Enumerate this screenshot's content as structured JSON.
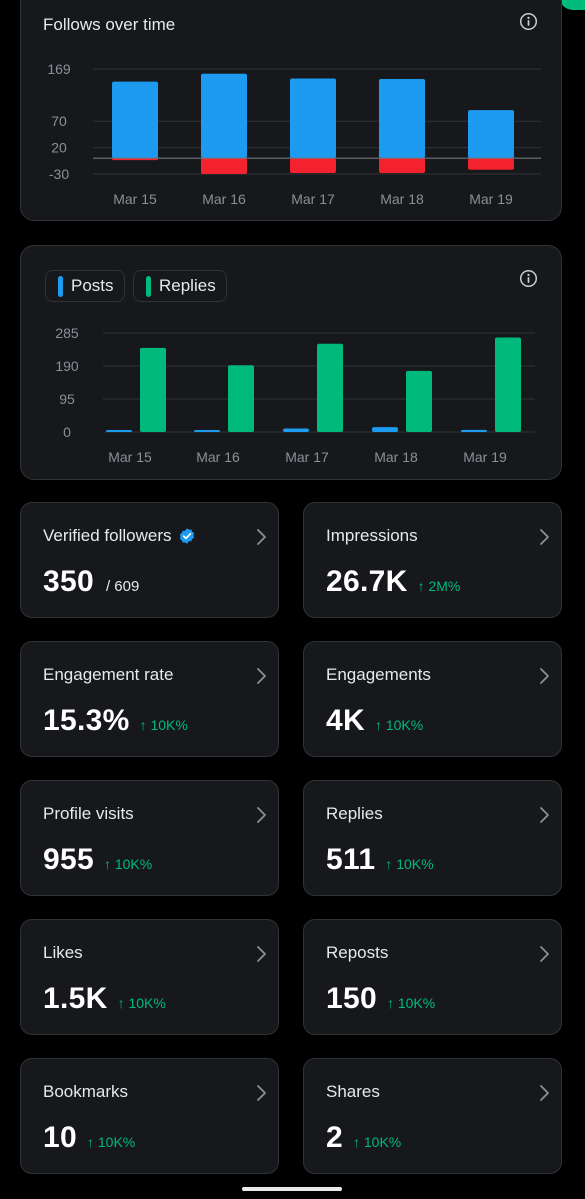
{
  "follows_card": {
    "title": "Follows over time"
  },
  "posts_card": {
    "legend": [
      {
        "label": "Posts",
        "color": "#1d9bf0"
      },
      {
        "label": "Replies",
        "color": "#00ba7c"
      }
    ]
  },
  "chart_data": [
    {
      "type": "bar",
      "title": "Follows over time",
      "categories": [
        "Mar 15",
        "Mar 16",
        "Mar 17",
        "Mar 18",
        "Mar 19"
      ],
      "yticks": [
        169,
        70,
        20,
        -30
      ],
      "ylim": [
        -30,
        169
      ],
      "series": [
        {
          "name": "",
          "color": "#1d9bf0",
          "values": [
            145,
            160,
            151,
            150,
            91
          ]
        },
        {
          "name": "",
          "color": "#f4212e",
          "values": [
            -3,
            -30,
            -28,
            -28,
            -22
          ]
        }
      ],
      "grid": true
    },
    {
      "type": "bar",
      "categories": [
        "Mar 15",
        "Mar 16",
        "Mar 17",
        "Mar 18",
        "Mar 19"
      ],
      "yticks": [
        285,
        190,
        95,
        0
      ],
      "ylim": [
        0,
        285
      ],
      "series": [
        {
          "name": "Posts",
          "color": "#1d9bf0",
          "values": [
            3,
            3,
            10,
            14,
            6
          ]
        },
        {
          "name": "Replies",
          "color": "#00ba7c",
          "values": [
            242,
            192,
            254,
            176,
            272
          ]
        }
      ],
      "grid": true
    }
  ],
  "metrics": [
    {
      "label": "Verified followers",
      "value": "350",
      "sub": "/ 609",
      "delta": "",
      "verified": true
    },
    {
      "label": "Impressions",
      "value": "26.7K",
      "sub": "",
      "delta": "↑ 2M%"
    },
    {
      "label": "Engagement rate",
      "value": "15.3%",
      "sub": "",
      "delta": "↑ 10K%"
    },
    {
      "label": "Engagements",
      "value": "4K",
      "sub": "",
      "delta": "↑ 10K%"
    },
    {
      "label": "Profile visits",
      "value": "955",
      "sub": "",
      "delta": "↑ 10K%"
    },
    {
      "label": "Replies",
      "value": "511",
      "sub": "",
      "delta": "↑ 10K%"
    },
    {
      "label": "Likes",
      "value": "1.5K",
      "sub": "",
      "delta": "↑ 10K%"
    },
    {
      "label": "Reposts",
      "value": "150",
      "sub": "",
      "delta": "↑ 10K%"
    },
    {
      "label": "Bookmarks",
      "value": "10",
      "sub": "",
      "delta": "↑ 10K%"
    },
    {
      "label": "Shares",
      "value": "2",
      "sub": "",
      "delta": "↑ 10K%"
    }
  ],
  "colors": {
    "background": "#000000",
    "card": "#16181c",
    "border": "#2f3336",
    "accent_blue": "#1d9bf0",
    "accent_green": "#00ba7c",
    "accent_red": "#f4212e",
    "muted_text": "#71767b"
  },
  "icons": {
    "info": "info-circle-icon",
    "chevron": "chevron-right-icon",
    "verified": "verified-badge-icon"
  }
}
